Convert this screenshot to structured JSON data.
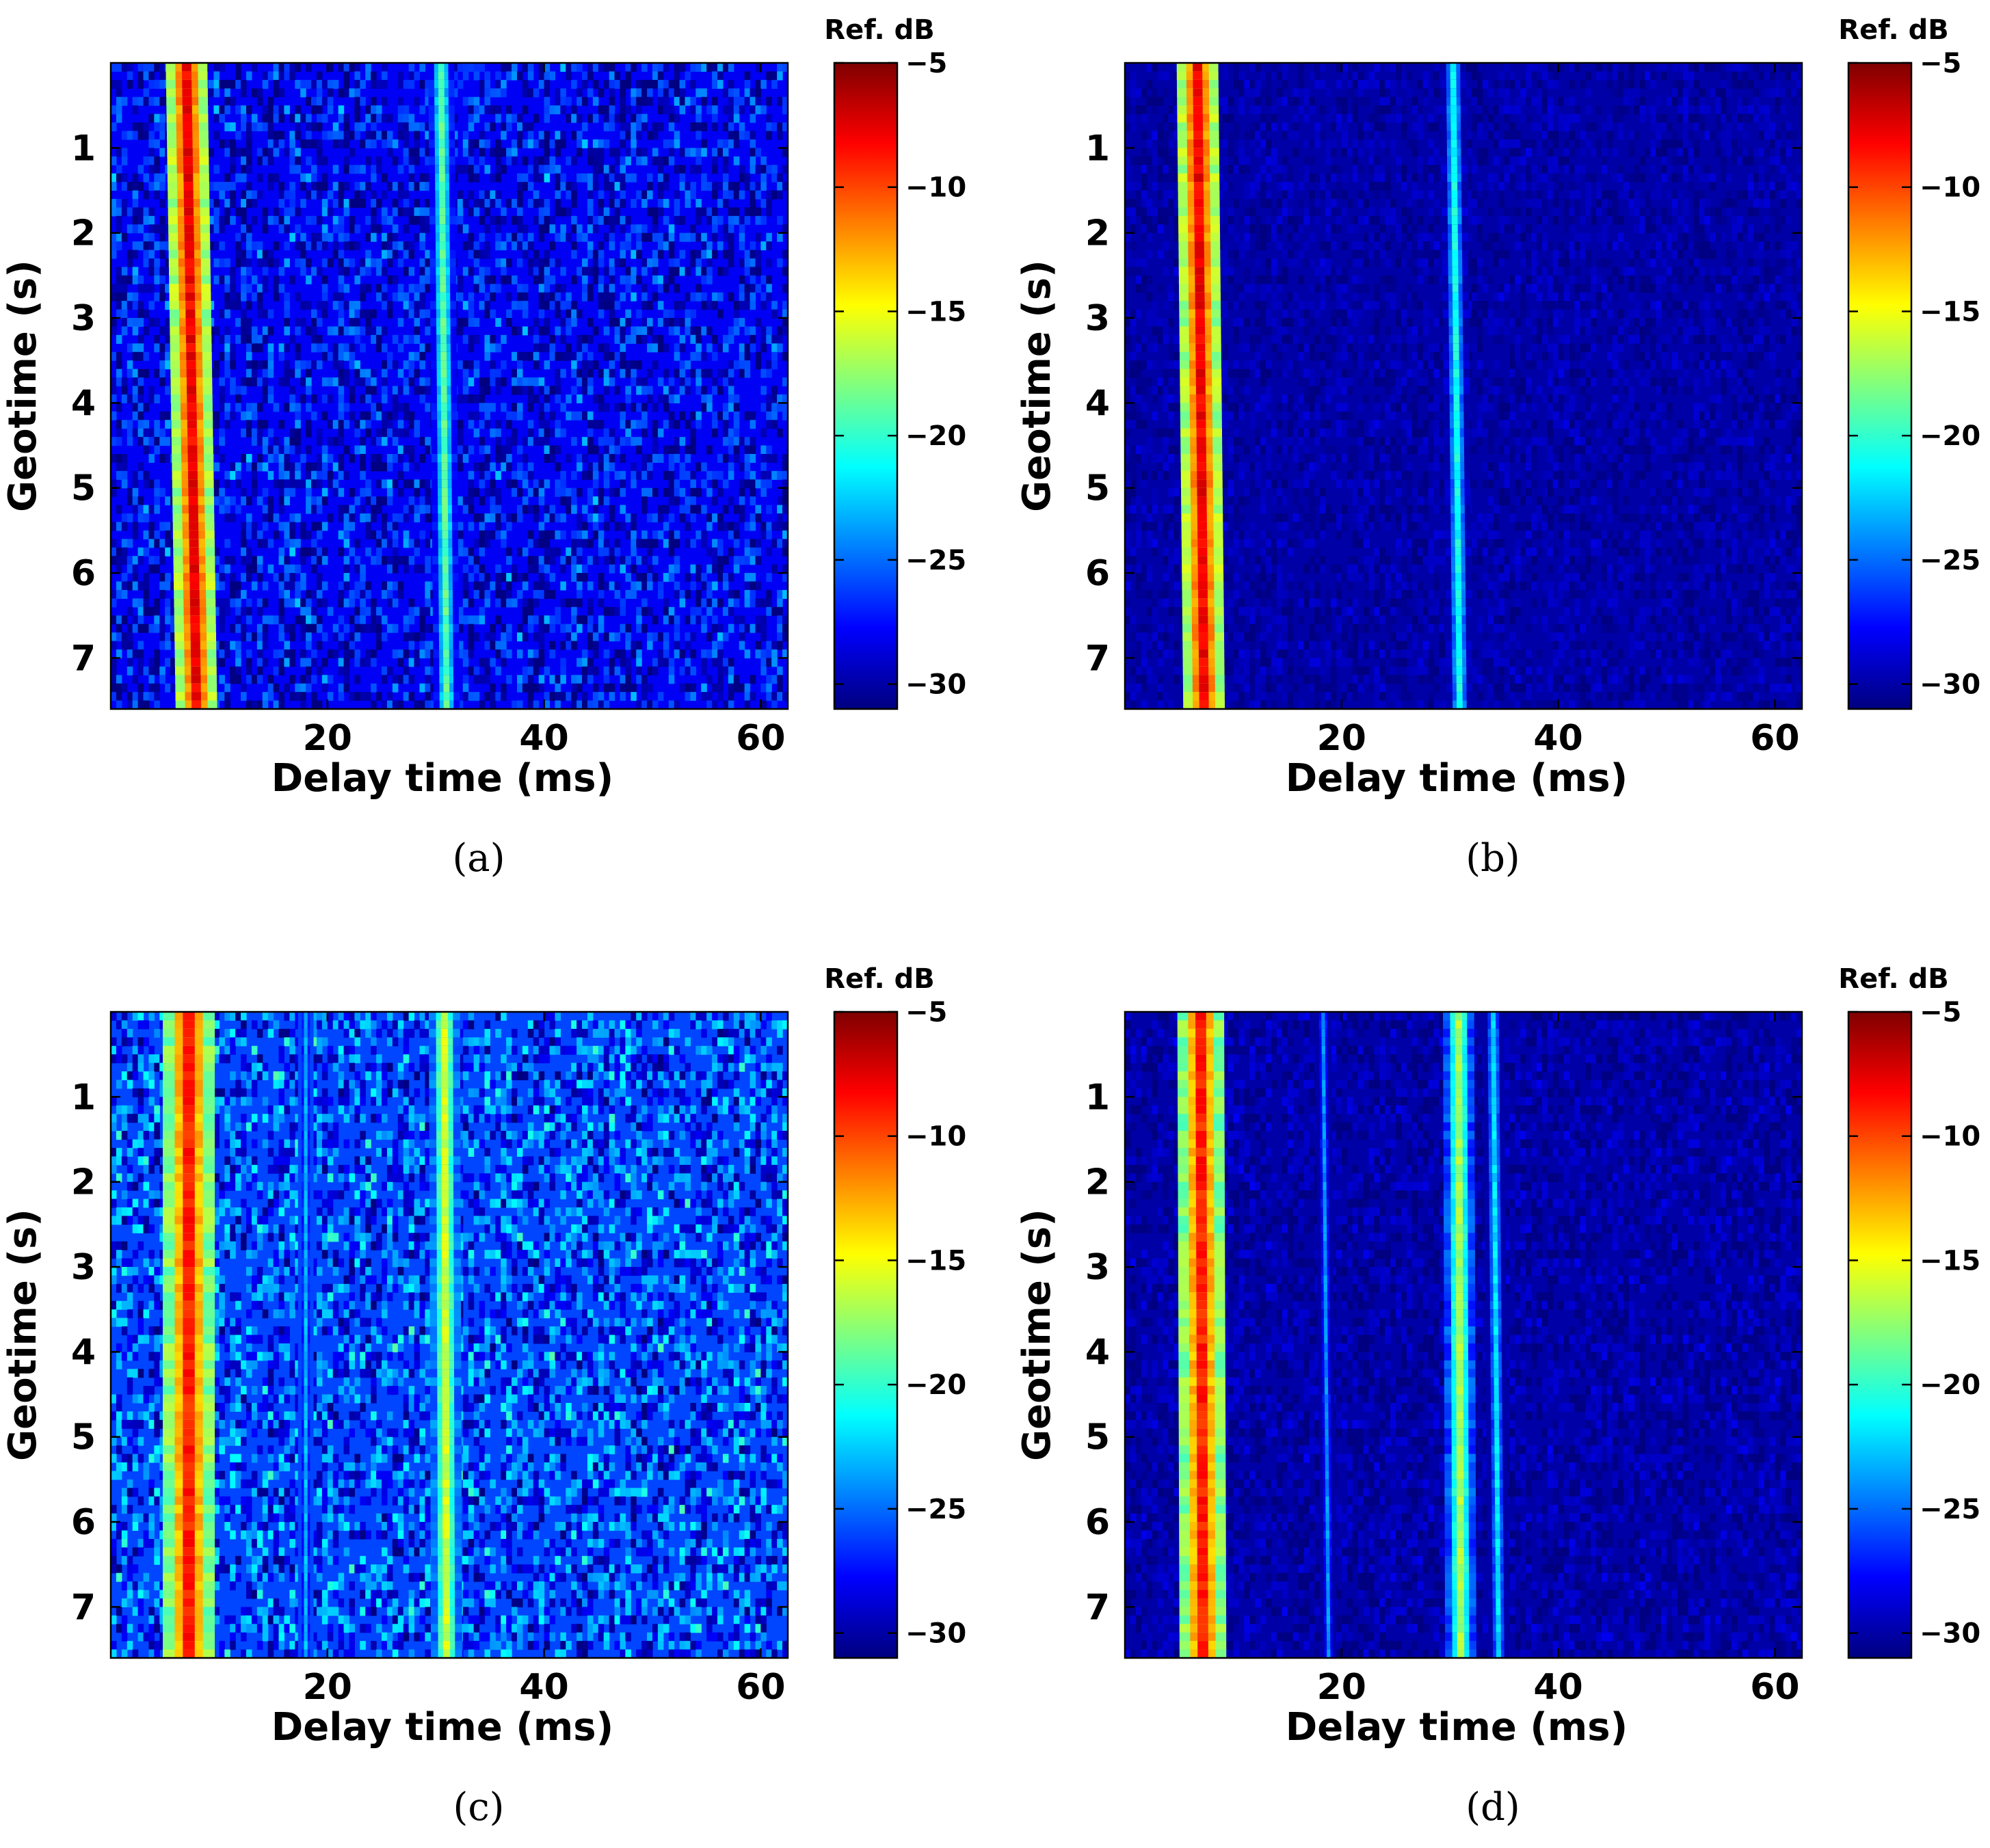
{
  "figure": {
    "panels": [
      {
        "caption": "(a)"
      },
      {
        "caption": "(b)"
      },
      {
        "caption": "(c)"
      },
      {
        "caption": "(d)"
      }
    ]
  },
  "chart_data": [
    {
      "type": "heatmap",
      "panel": "(a)",
      "xlabel": "Delay time (ms)",
      "ylabel": "Geotime (s)",
      "xlim": [
        0,
        62.5
      ],
      "ylim": [
        0,
        7.6
      ],
      "y_direction": "top-to-bottom",
      "xticks": [
        20,
        40,
        60
      ],
      "yticks": [
        1,
        2,
        3,
        4,
        5,
        6,
        7
      ],
      "colorbar": {
        "title": "Ref. dB",
        "range": [
          -31,
          -5
        ],
        "ticks": [
          -5,
          -10,
          -15,
          -20,
          -25,
          -30
        ],
        "colormap": "jet"
      },
      "background_db": -28,
      "noise_db": 4,
      "components": [
        {
          "delay_ms": 7.0,
          "delay_ms_end": 7.9,
          "peak_db": -8,
          "width_ms": 0.8
        },
        {
          "delay_ms": 30.5,
          "delay_ms_end": 31.0,
          "peak_db": -19,
          "width_ms": 0.5
        }
      ]
    },
    {
      "type": "heatmap",
      "panel": "(b)",
      "xlabel": "Delay time (ms)",
      "ylabel": "Geotime (s)",
      "xlim": [
        0,
        62.5
      ],
      "ylim": [
        0,
        7.6
      ],
      "y_direction": "top-to-bottom",
      "xticks": [
        20,
        40,
        60
      ],
      "yticks": [
        1,
        2,
        3,
        4,
        5,
        6,
        7
      ],
      "colorbar": {
        "title": "Ref. dB",
        "range": [
          -31,
          -5
        ],
        "ticks": [
          -5,
          -10,
          -15,
          -20,
          -25,
          -30
        ],
        "colormap": "jet"
      },
      "background_db": -30,
      "noise_db": 1.2,
      "components": [
        {
          "delay_ms": 6.7,
          "delay_ms_end": 7.3,
          "peak_db": -8,
          "width_ms": 0.8
        },
        {
          "delay_ms": 30.3,
          "delay_ms_end": 30.9,
          "peak_db": -21,
          "width_ms": 0.5
        }
      ]
    },
    {
      "type": "heatmap",
      "panel": "(c)",
      "xlabel": "Delay time (ms)",
      "ylabel": "Geotime (s)",
      "xlim": [
        0,
        62.5
      ],
      "ylim": [
        0,
        7.6
      ],
      "y_direction": "top-to-bottom",
      "xticks": [
        20,
        40,
        60
      ],
      "yticks": [
        1,
        2,
        3,
        4,
        5,
        6,
        7
      ],
      "colorbar": {
        "title": "Ref. dB",
        "range": [
          -31,
          -5
        ],
        "ticks": [
          -5,
          -10,
          -15,
          -20,
          -25,
          -30
        ],
        "colormap": "jet"
      },
      "background_db": -26,
      "noise_db": 5,
      "components": [
        {
          "delay_ms": 7.2,
          "delay_ms_end": 7.2,
          "peak_db": -9,
          "width_ms": 1.0
        },
        {
          "delay_ms": 30.8,
          "delay_ms_end": 31.0,
          "peak_db": -16,
          "width_ms": 0.6
        },
        {
          "delay_ms": 18.0,
          "delay_ms_end": 18.0,
          "peak_db": -23,
          "width_ms": 0.3
        }
      ]
    },
    {
      "type": "heatmap",
      "panel": "(d)",
      "xlabel": "Delay time (ms)",
      "ylabel": "Geotime (s)",
      "xlim": [
        0,
        62.5
      ],
      "ylim": [
        0,
        7.6
      ],
      "y_direction": "top-to-bottom",
      "xticks": [
        20,
        40,
        60
      ],
      "yticks": [
        1,
        2,
        3,
        4,
        5,
        6,
        7
      ],
      "colorbar": {
        "title": "Ref. dB",
        "range": [
          -31,
          -5
        ],
        "ticks": [
          -5,
          -10,
          -15,
          -20,
          -25,
          -30
        ],
        "colormap": "jet"
      },
      "background_db": -30,
      "noise_db": 1.5,
      "components": [
        {
          "delay_ms": 7.0,
          "delay_ms_end": 7.2,
          "peak_db": -9,
          "width_ms": 0.9
        },
        {
          "delay_ms": 30.8,
          "delay_ms_end": 31.0,
          "peak_db": -17,
          "width_ms": 0.6
        },
        {
          "delay_ms": 34.0,
          "delay_ms_end": 34.5,
          "peak_db": -22,
          "width_ms": 0.4
        },
        {
          "delay_ms": 18.3,
          "delay_ms_end": 18.8,
          "peak_db": -24,
          "width_ms": 0.3
        }
      ]
    }
  ]
}
